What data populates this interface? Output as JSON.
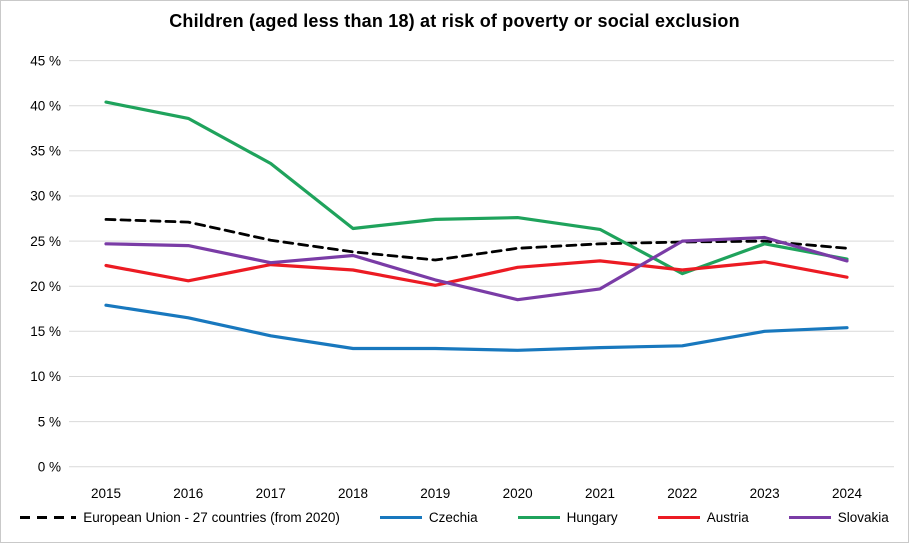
{
  "title": "Children (aged less than 18) at risk of poverty or social exclusion",
  "colors": {
    "gridline": "#d9d9d9",
    "text": "#000000",
    "frame_border": "#c9c9c9"
  },
  "chart_data": {
    "type": "line",
    "x": [
      2015,
      2016,
      2017,
      2018,
      2019,
      2020,
      2021,
      2022,
      2023,
      2024
    ],
    "series": [
      {
        "name": "European Union - 27 countries (from 2020)",
        "color": "#000000",
        "dashed": true,
        "values": [
          27.4,
          27.1,
          25.1,
          23.8,
          22.9,
          24.2,
          24.7,
          24.9,
          25.0,
          24.2
        ]
      },
      {
        "name": "Czechia",
        "color": "#1878be",
        "dashed": false,
        "values": [
          17.9,
          16.5,
          14.5,
          13.1,
          13.1,
          12.9,
          13.2,
          13.4,
          15.0,
          15.4
        ]
      },
      {
        "name": "Hungary",
        "color": "#1fa35c",
        "dashed": false,
        "values": [
          40.4,
          38.6,
          33.6,
          26.4,
          27.4,
          27.6,
          26.3,
          21.4,
          24.7,
          23.0
        ]
      },
      {
        "name": "Austria",
        "color": "#ec1b23",
        "dashed": false,
        "values": [
          22.3,
          20.6,
          22.4,
          21.8,
          20.1,
          22.1,
          22.8,
          21.8,
          22.7,
          21.0
        ]
      },
      {
        "name": "Slovakia",
        "color": "#7a3ca6",
        "dashed": false,
        "values": [
          24.7,
          24.5,
          22.6,
          23.4,
          20.7,
          18.5,
          19.7,
          25.0,
          25.4,
          22.8
        ]
      }
    ],
    "ylim": [
      0,
      45
    ],
    "ytick_step": 5,
    "ytick_suffix": " %",
    "grid": true,
    "legend_position": "bottom"
  }
}
